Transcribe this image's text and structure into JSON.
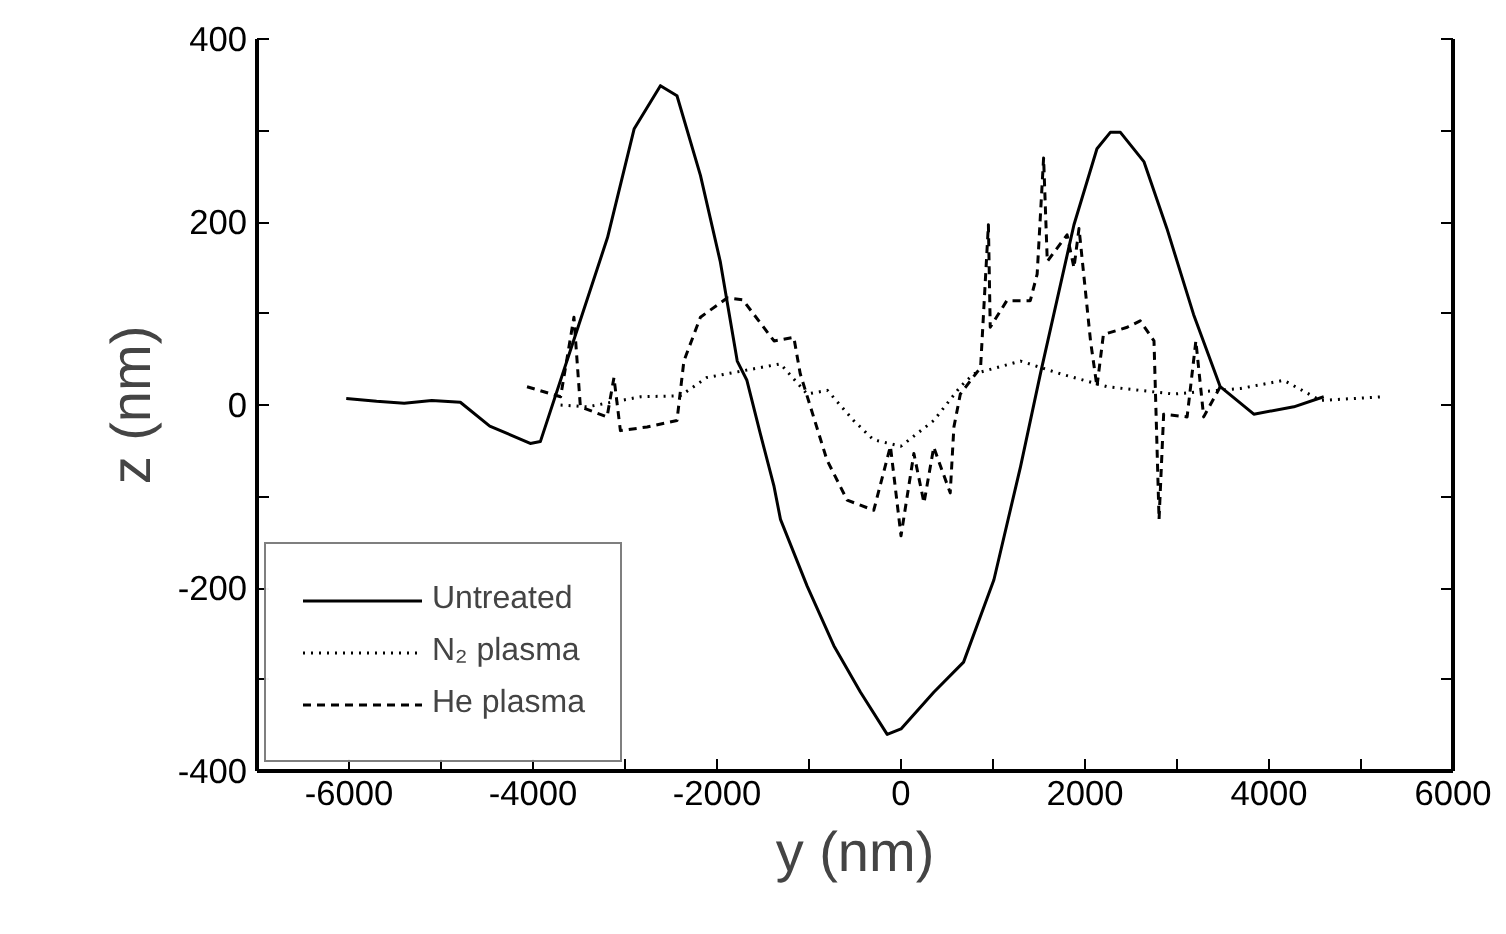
{
  "chart_data": {
    "type": "line",
    "xlabel": "y (nm)",
    "ylabel": "z (nm)",
    "xlim": [
      -7000,
      6000
    ],
    "ylim": [
      -400,
      400
    ],
    "xticks": [
      {
        "value": -7000,
        "label": null
      },
      -6000,
      {
        "value": -5000,
        "label": null
      },
      -4000,
      {
        "value": -3000,
        "label": null
      },
      -2000,
      {
        "value": -1000,
        "label": null
      },
      0,
      {
        "value": 1000,
        "label": null
      },
      2000,
      {
        "value": 3000,
        "label": null
      },
      4000,
      {
        "value": 5000,
        "label": null
      },
      6000
    ],
    "yticks": [
      -400,
      {
        "value": -300,
        "label": null
      },
      -200,
      {
        "value": -100,
        "label": null
      },
      0,
      {
        "value": 100,
        "label": null
      },
      200,
      {
        "value": 300,
        "label": null
      },
      400
    ],
    "grid": false,
    "legend": "bottom left",
    "series": [
      {
        "name": "Untreated",
        "color": "#000000",
        "line_style": "solid",
        "x": [
          -6030,
          -5700,
          -5400,
          -5100,
          -4790,
          -4470,
          -4030,
          -3920,
          -3560,
          -3190,
          -2900,
          -2615,
          -2435,
          -2180,
          -1965,
          -1780,
          -1675,
          -1530,
          -1380,
          -1310,
          -1020,
          -730,
          -440,
          -150,
          0,
          356,
          680,
          1010,
          1300,
          1515,
          1880,
          2130,
          2275,
          2385,
          2640,
          2890,
          3180,
          3470,
          3835,
          4270,
          4595
        ],
        "values": [
          7,
          4,
          2,
          5,
          3,
          -23,
          -42,
          -40,
          70,
          183,
          302,
          349,
          338,
          251,
          157,
          48,
          27,
          -31,
          -89,
          -125,
          -198,
          -263,
          -314,
          -360,
          -354,
          -314,
          -281,
          -191,
          -67,
          34,
          197,
          280,
          298,
          298,
          266,
          193,
          99,
          20,
          -10,
          -2,
          9
        ]
      },
      {
        "name": "N₂ plasma",
        "color": "#000000",
        "line_style": "dotted",
        "x": [
          -3700,
          -3410,
          -2830,
          -2400,
          -2110,
          -1310,
          -1020,
          -800,
          -515,
          -300,
          0,
          356,
          645,
          790,
          1300,
          1735,
          2240,
          2965,
          3690,
          4160,
          4560,
          5250
        ],
        "values": [
          0,
          -2,
          9,
          10,
          30,
          45,
          12,
          16,
          -17,
          -38,
          -45,
          -17,
          20,
          34,
          48,
          34,
          20,
          12,
          18,
          27,
          5,
          9
        ]
      },
      {
        "name": "He plasma",
        "color": "#000000",
        "line_style": "dashed",
        "x": [
          -4065,
          -3700,
          -3555,
          -3485,
          -3195,
          -3120,
          -3050,
          -2760,
          -2435,
          -2360,
          -2180,
          -1890,
          -1720,
          -1380,
          -1165,
          -1095,
          -805,
          -585,
          -296,
          -115,
          0,
          140,
          250,
          356,
          430,
          535,
          575,
          645,
          865,
          950,
          970,
          1150,
          1405,
          1480,
          1550,
          1590,
          1805,
          1880,
          1935,
          2060,
          2130,
          2200,
          2460,
          2600,
          2750,
          2805,
          2855,
          3110,
          3205,
          3290,
          3470
        ],
        "values": [
          20,
          9,
          96,
          -2,
          -13,
          30,
          -28,
          -24,
          -17,
          48,
          96,
          117,
          115,
          70,
          74,
          34,
          -60,
          -104,
          -115,
          -45,
          -143,
          -53,
          -107,
          -46,
          -67,
          -96,
          -24,
          12,
          41,
          197,
          85,
          114,
          114,
          143,
          270,
          157,
          186,
          150,
          193,
          70,
          20,
          77,
          85,
          92,
          70,
          -125,
          -10,
          -13,
          70,
          -13,
          20
        ]
      }
    ]
  }
}
